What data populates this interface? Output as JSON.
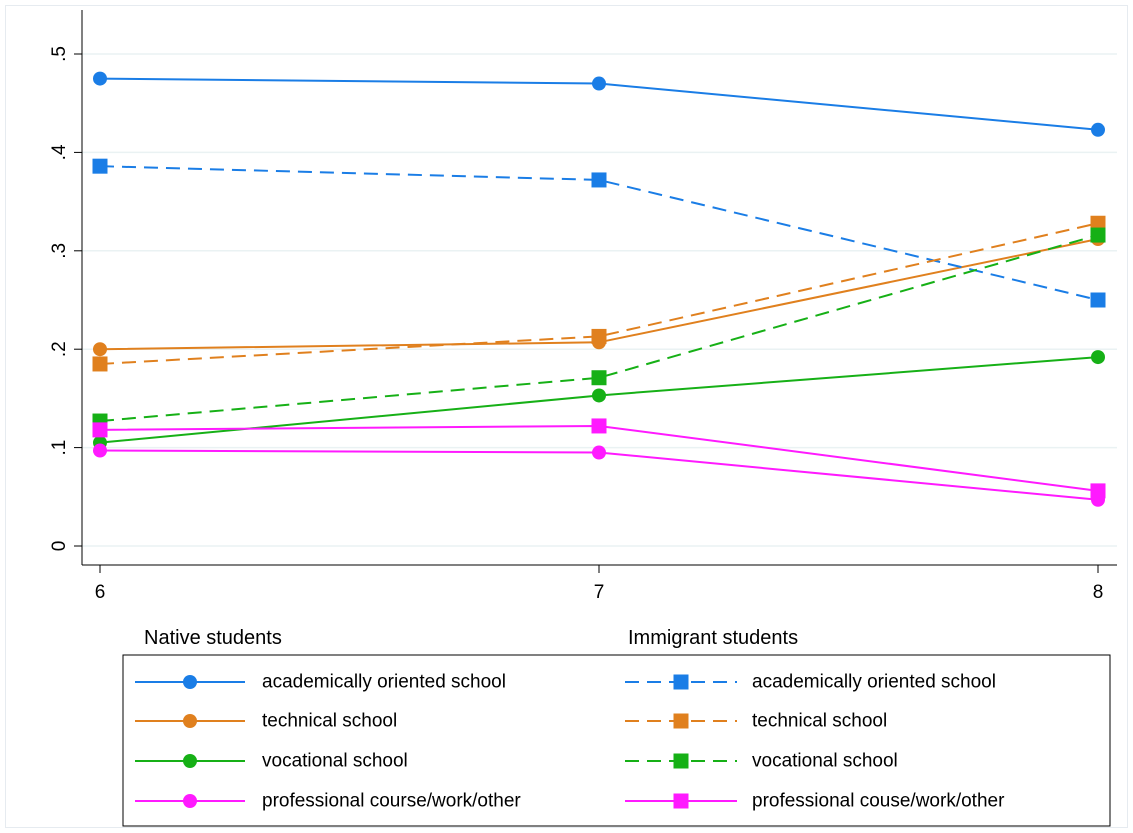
{
  "chart_data": {
    "type": "line",
    "title": "",
    "xlabel": "",
    "ylabel": "",
    "x": [
      6,
      7,
      8
    ],
    "x_tick_labels": [
      "6",
      "7",
      "8"
    ],
    "xlim": [
      6,
      8
    ],
    "ylim": [
      0,
      0.5
    ],
    "y_ticks": [
      0,
      0.1,
      0.2,
      0.3,
      0.4,
      0.5
    ],
    "y_tick_labels": [
      "0",
      ".1",
      ".2",
      ".3",
      ".4",
      ".5"
    ],
    "grid": true,
    "legend_placement": "bottom",
    "legend_groups": [
      {
        "title": "Native students"
      },
      {
        "title": "Immigrant students"
      }
    ],
    "series": [
      {
        "name": "academically oriented school",
        "group": 0,
        "color": "#1a7de6",
        "marker": "circle",
        "dashed": false,
        "values": [
          0.475,
          0.47,
          0.423
        ]
      },
      {
        "name": "technical school",
        "group": 0,
        "color": "#e0801e",
        "marker": "circle",
        "dashed": false,
        "values": [
          0.2,
          0.207,
          0.312
        ]
      },
      {
        "name": "vocational school",
        "group": 0,
        "color": "#16b016",
        "marker": "circle",
        "dashed": false,
        "values": [
          0.105,
          0.153,
          0.192
        ]
      },
      {
        "name": "professional course/work/other",
        "group": 0,
        "color": "#ff1aff",
        "marker": "circle",
        "dashed": false,
        "values": [
          0.097,
          0.095,
          0.047
        ]
      },
      {
        "name": "academically oriented school",
        "group": 1,
        "color": "#1a7de6",
        "marker": "square",
        "dashed": true,
        "values": [
          0.386,
          0.372,
          0.25
        ]
      },
      {
        "name": "technical school",
        "group": 1,
        "color": "#e0801e",
        "marker": "square",
        "dashed": true,
        "values": [
          0.185,
          0.213,
          0.328
        ]
      },
      {
        "name": "vocational school",
        "group": 1,
        "color": "#16b016",
        "marker": "square",
        "dashed": true,
        "values": [
          0.127,
          0.171,
          0.316
        ]
      },
      {
        "name": "professional couse/work/other",
        "group": 1,
        "color": "#ff1aff",
        "marker": "square",
        "dashed": false,
        "values": [
          0.118,
          0.122,
          0.056
        ]
      }
    ]
  }
}
